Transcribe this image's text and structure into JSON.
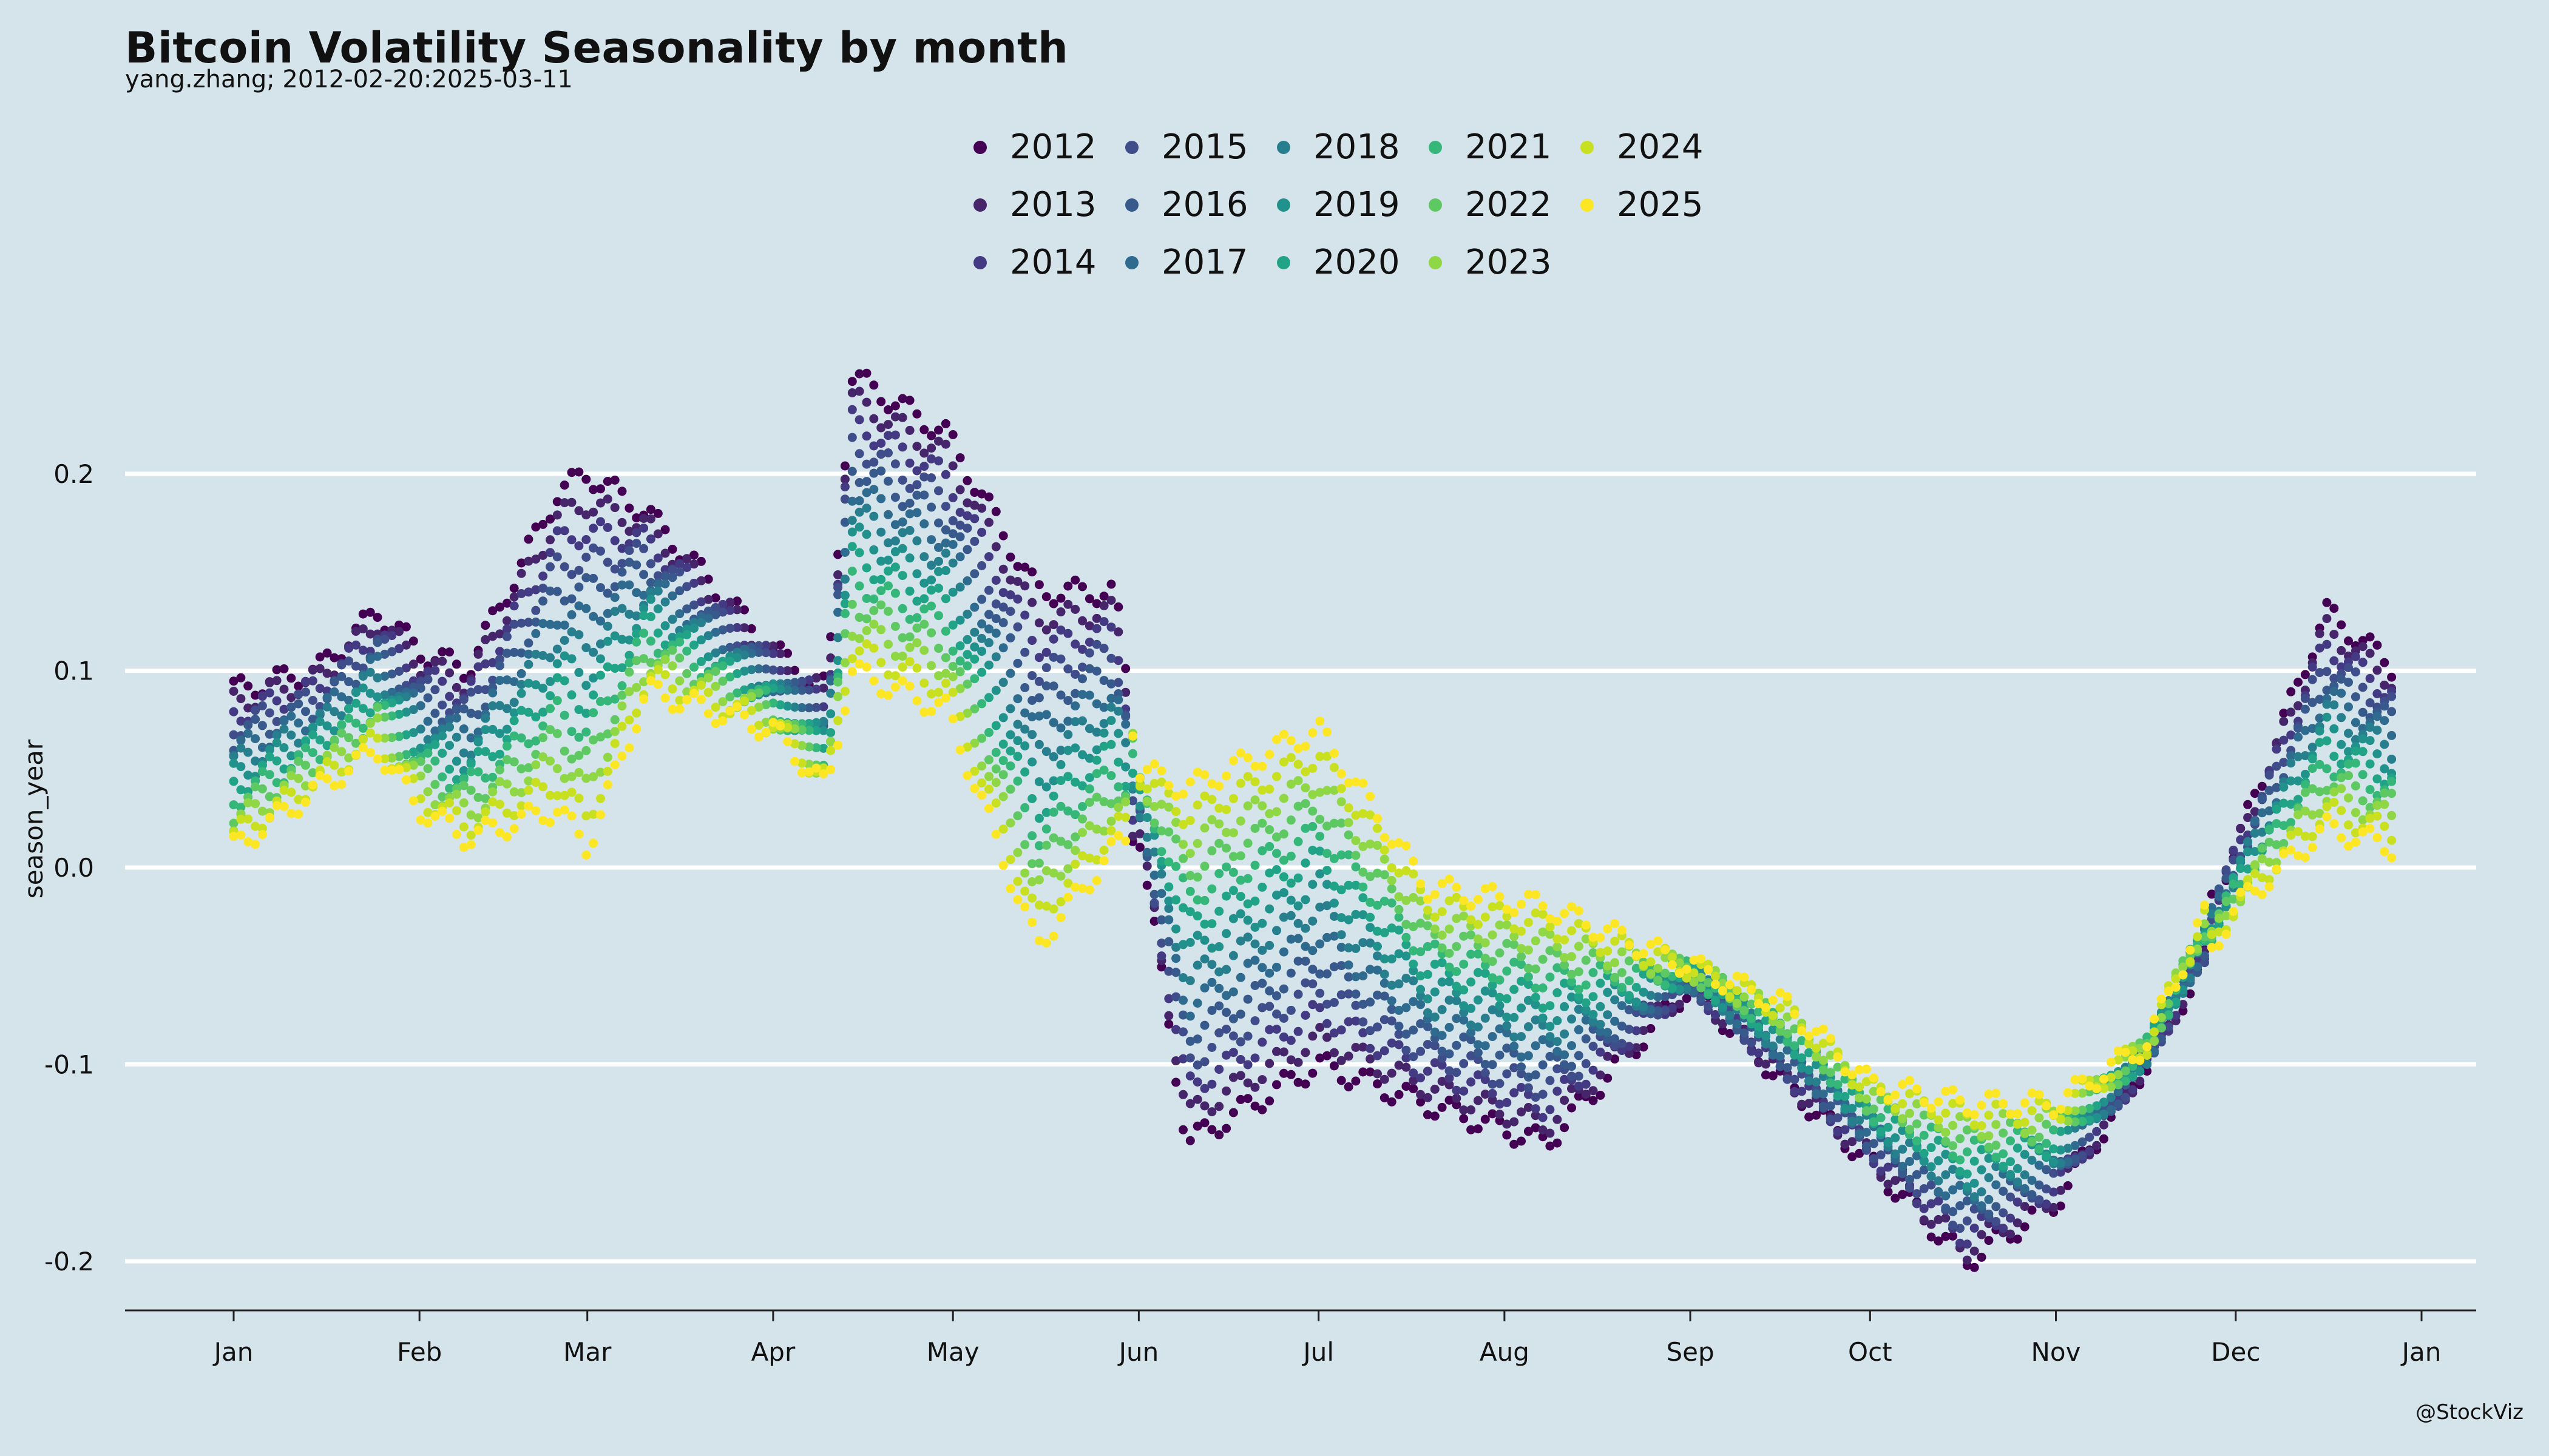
{
  "chart_data": {
    "type": "scatter",
    "title": "Bitcoin Volatility Seasonality by month",
    "subtitle": "yang.zhang; 2012-02-20:2025-03-11",
    "ylabel": "season_year",
    "xlabel": "",
    "ylim": [
      -0.225,
      0.265
    ],
    "yticks": [
      0.2,
      0.1,
      0.0,
      -0.1,
      -0.2
    ],
    "ytick_labels": [
      "0.2",
      "0.1",
      "0.0",
      "-0.1",
      "-0.2"
    ],
    "xticks": [
      "Jan",
      "Feb",
      "Mar",
      "Apr",
      "May",
      "Jun",
      "Jul",
      "Aug",
      "Sep",
      "Oct",
      "Nov",
      "Dec",
      "Jan"
    ],
    "xtick_days": [
      1,
      32,
      60,
      91,
      121,
      152,
      182,
      213,
      244,
      274,
      305,
      335,
      366
    ],
    "grid": true,
    "legend_position": "top-center",
    "series": [
      {
        "name": "2012",
        "color": "#440154"
      },
      {
        "name": "2013",
        "color": "#46256b"
      },
      {
        "name": "2014",
        "color": "#443a83"
      },
      {
        "name": "2015",
        "color": "#3f4d8a"
      },
      {
        "name": "2016",
        "color": "#37598c"
      },
      {
        "name": "2017",
        "color": "#2f6b8e"
      },
      {
        "name": "2018",
        "color": "#277f8e"
      },
      {
        "name": "2019",
        "color": "#21918c"
      },
      {
        "name": "2020",
        "color": "#20a386"
      },
      {
        "name": "2021",
        "color": "#35b779"
      },
      {
        "name": "2022",
        "color": "#5ec962"
      },
      {
        "name": "2023",
        "color": "#8fd744"
      },
      {
        "name": "2024",
        "color": "#c8e020"
      },
      {
        "name": "2025",
        "color": "#fde725"
      }
    ],
    "extremes": {
      "x": [
        1,
        15,
        25,
        32,
        40,
        55,
        60,
        70,
        91,
        100,
        104,
        120,
        135,
        148,
        152,
        160,
        182,
        200,
        220,
        244,
        260,
        274,
        290,
        305,
        320,
        335,
        350,
        362
      ],
      "low": [
        0.01,
        0.04,
        0.06,
        0.03,
        0.015,
        0.03,
        0.01,
        0.09,
        0.07,
        0.04,
        0.1,
        0.08,
        -0.04,
        0.01,
        0.02,
        -0.14,
        -0.1,
        -0.12,
        -0.14,
        -0.06,
        -0.11,
        -0.15,
        -0.2,
        -0.17,
        -0.1,
        -0.02,
        0.02,
        0.01
      ],
      "high": [
        0.09,
        0.1,
        0.13,
        0.11,
        0.1,
        0.19,
        0.2,
        0.18,
        0.11,
        0.09,
        0.25,
        0.22,
        0.14,
        0.14,
        0.05,
        0.04,
        0.07,
        -0.01,
        -0.02,
        -0.05,
        -0.07,
        -0.11,
        -0.12,
        -0.12,
        -0.09,
        0.01,
        0.13,
        0.1
      ]
    }
  },
  "watermark": "@StockViz"
}
